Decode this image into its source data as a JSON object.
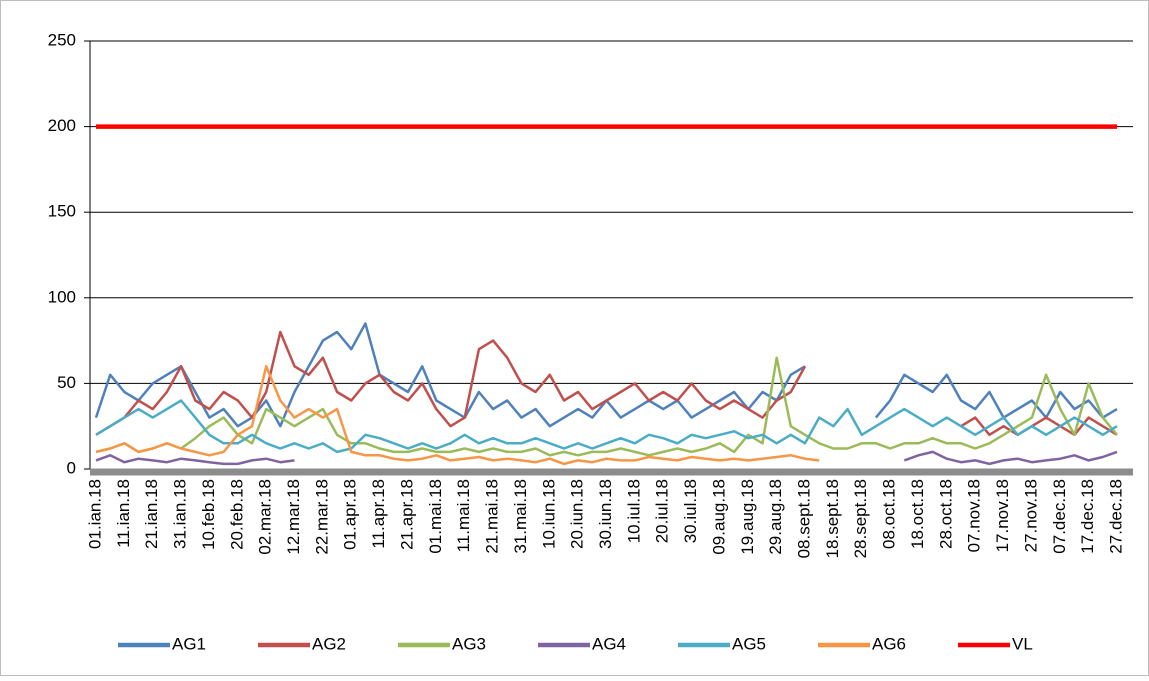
{
  "chart_data": {
    "type": "line",
    "categories": [
      "01.ian.18",
      null,
      "11.ian.18",
      null,
      "21.ian.18",
      null,
      "31.ian.18",
      null,
      "10.feb.18",
      null,
      "20.feb.18",
      null,
      "02.mar.18",
      null,
      "12.mar.18",
      null,
      "22.mar.18",
      null,
      "01.apr.18",
      null,
      "11.apr.18",
      null,
      "21.apr.18",
      null,
      "01.mai.18",
      null,
      "11.mai.18",
      null,
      "21.mai.18",
      null,
      "31.mai.18",
      null,
      "10.iun.18",
      null,
      "20.iun.18",
      null,
      "30.iun.18",
      null,
      "10.iul.18",
      null,
      "20.iul.18",
      null,
      "30.iul.18",
      null,
      "09.aug.18",
      null,
      "19.aug.18",
      null,
      "29.aug.18",
      null,
      "08.sept.18",
      null,
      "18.sept.18",
      null,
      "28.sept.18",
      null,
      "08.oct.18",
      null,
      "18.oct.18",
      null,
      "28.oct.18",
      null,
      "07.nov.18",
      null,
      "17.nov.18",
      null,
      "27.nov.18",
      null,
      "07.dec.18",
      null,
      "17.dec.18",
      null,
      "27.dec.18"
    ],
    "series": [
      {
        "name": "AG1",
        "color": "#4f81bd",
        "values": [
          30,
          55,
          45,
          40,
          50,
          55,
          60,
          45,
          30,
          35,
          25,
          30,
          40,
          25,
          45,
          60,
          75,
          80,
          70,
          85,
          55,
          50,
          45,
          60,
          40,
          35,
          30,
          45,
          35,
          40,
          30,
          35,
          25,
          30,
          35,
          30,
          40,
          30,
          35,
          40,
          35,
          40,
          30,
          35,
          40,
          45,
          35,
          45,
          40,
          55,
          60,
          null,
          null,
          null,
          null,
          30,
          40,
          55,
          50,
          45,
          55,
          40,
          35,
          45,
          30,
          35,
          40,
          30,
          45,
          35,
          40,
          30,
          35
        ]
      },
      {
        "name": "AG2",
        "color": "#c0504d",
        "values": [
          20,
          25,
          30,
          40,
          35,
          45,
          60,
          40,
          35,
          45,
          40,
          30,
          45,
          80,
          60,
          55,
          65,
          45,
          40,
          50,
          55,
          45,
          40,
          50,
          35,
          25,
          30,
          70,
          75,
          65,
          50,
          45,
          55,
          40,
          45,
          35,
          40,
          45,
          50,
          40,
          45,
          40,
          50,
          40,
          35,
          40,
          35,
          30,
          40,
          45,
          60,
          null,
          null,
          null,
          null,
          null,
          null,
          null,
          null,
          null,
          null,
          25,
          30,
          20,
          25,
          20,
          25,
          30,
          25,
          20,
          30,
          25,
          20
        ]
      },
      {
        "name": "AG3",
        "color": "#9bbb59",
        "values": [
          10,
          12,
          15,
          10,
          12,
          15,
          12,
          18,
          25,
          30,
          20,
          15,
          35,
          30,
          25,
          30,
          35,
          20,
          15,
          15,
          12,
          10,
          10,
          12,
          10,
          10,
          12,
          10,
          12,
          10,
          10,
          12,
          8,
          10,
          8,
          10,
          10,
          12,
          10,
          8,
          10,
          12,
          10,
          12,
          15,
          10,
          20,
          15,
          65,
          25,
          20,
          15,
          12,
          12,
          15,
          15,
          12,
          15,
          15,
          18,
          15,
          15,
          12,
          15,
          20,
          25,
          30,
          55,
          35,
          20,
          50,
          30,
          20
        ]
      },
      {
        "name": "AG4",
        "color": "#8064a2",
        "values": [
          5,
          8,
          4,
          6,
          5,
          4,
          6,
          5,
          4,
          3,
          3,
          5,
          6,
          4,
          5,
          null,
          null,
          null,
          null,
          null,
          null,
          null,
          null,
          null,
          null,
          null,
          null,
          null,
          null,
          null,
          null,
          null,
          null,
          null,
          null,
          null,
          null,
          null,
          null,
          null,
          null,
          null,
          null,
          null,
          null,
          null,
          null,
          null,
          null,
          null,
          null,
          null,
          null,
          null,
          null,
          null,
          null,
          5,
          8,
          10,
          6,
          4,
          5,
          3,
          5,
          6,
          4,
          5,
          6,
          8,
          5,
          7,
          10
        ]
      },
      {
        "name": "AG5",
        "color": "#4bacc6",
        "values": [
          20,
          25,
          30,
          35,
          30,
          35,
          40,
          30,
          20,
          15,
          15,
          20,
          15,
          12,
          15,
          12,
          15,
          10,
          12,
          20,
          18,
          15,
          12,
          15,
          12,
          15,
          20,
          15,
          18,
          15,
          15,
          18,
          15,
          12,
          15,
          12,
          15,
          18,
          15,
          20,
          18,
          15,
          20,
          18,
          20,
          22,
          18,
          20,
          15,
          20,
          15,
          30,
          25,
          35,
          20,
          25,
          30,
          35,
          30,
          25,
          30,
          25,
          20,
          25,
          30,
          20,
          25,
          20,
          25,
          30,
          25,
          20,
          25
        ]
      },
      {
        "name": "AG6",
        "color": "#f79646",
        "values": [
          10,
          12,
          15,
          10,
          12,
          15,
          12,
          10,
          8,
          10,
          20,
          25,
          60,
          40,
          30,
          35,
          30,
          35,
          10,
          8,
          8,
          6,
          5,
          6,
          8,
          5,
          6,
          7,
          5,
          6,
          5,
          4,
          6,
          3,
          5,
          4,
          6,
          5,
          5,
          7,
          6,
          5,
          7,
          6,
          5,
          6,
          5,
          6,
          7,
          8,
          6,
          5,
          null,
          null,
          null,
          null,
          null,
          null,
          null,
          null,
          null,
          null,
          null,
          null,
          null,
          null,
          null,
          null,
          null,
          null,
          null,
          null,
          null
        ]
      },
      {
        "name": "VL",
        "color": "#ff0000",
        "values": [
          200,
          200,
          200,
          200,
          200,
          200,
          200,
          200,
          200,
          200,
          200,
          200,
          200,
          200,
          200,
          200,
          200,
          200,
          200,
          200,
          200,
          200,
          200,
          200,
          200,
          200,
          200,
          200,
          200,
          200,
          200,
          200,
          200,
          200,
          200,
          200,
          200,
          200,
          200,
          200,
          200,
          200,
          200,
          200,
          200,
          200,
          200,
          200,
          200,
          200,
          200,
          200,
          200,
          200,
          200,
          200,
          200,
          200,
          200,
          200,
          200,
          200,
          200,
          200,
          200,
          200,
          200,
          200,
          200,
          200,
          200,
          200,
          200
        ]
      }
    ],
    "ylim": [
      0,
      250
    ],
    "yticks": [
      0,
      50,
      100,
      150,
      200,
      250
    ],
    "grid": true,
    "legend": "bottom"
  }
}
